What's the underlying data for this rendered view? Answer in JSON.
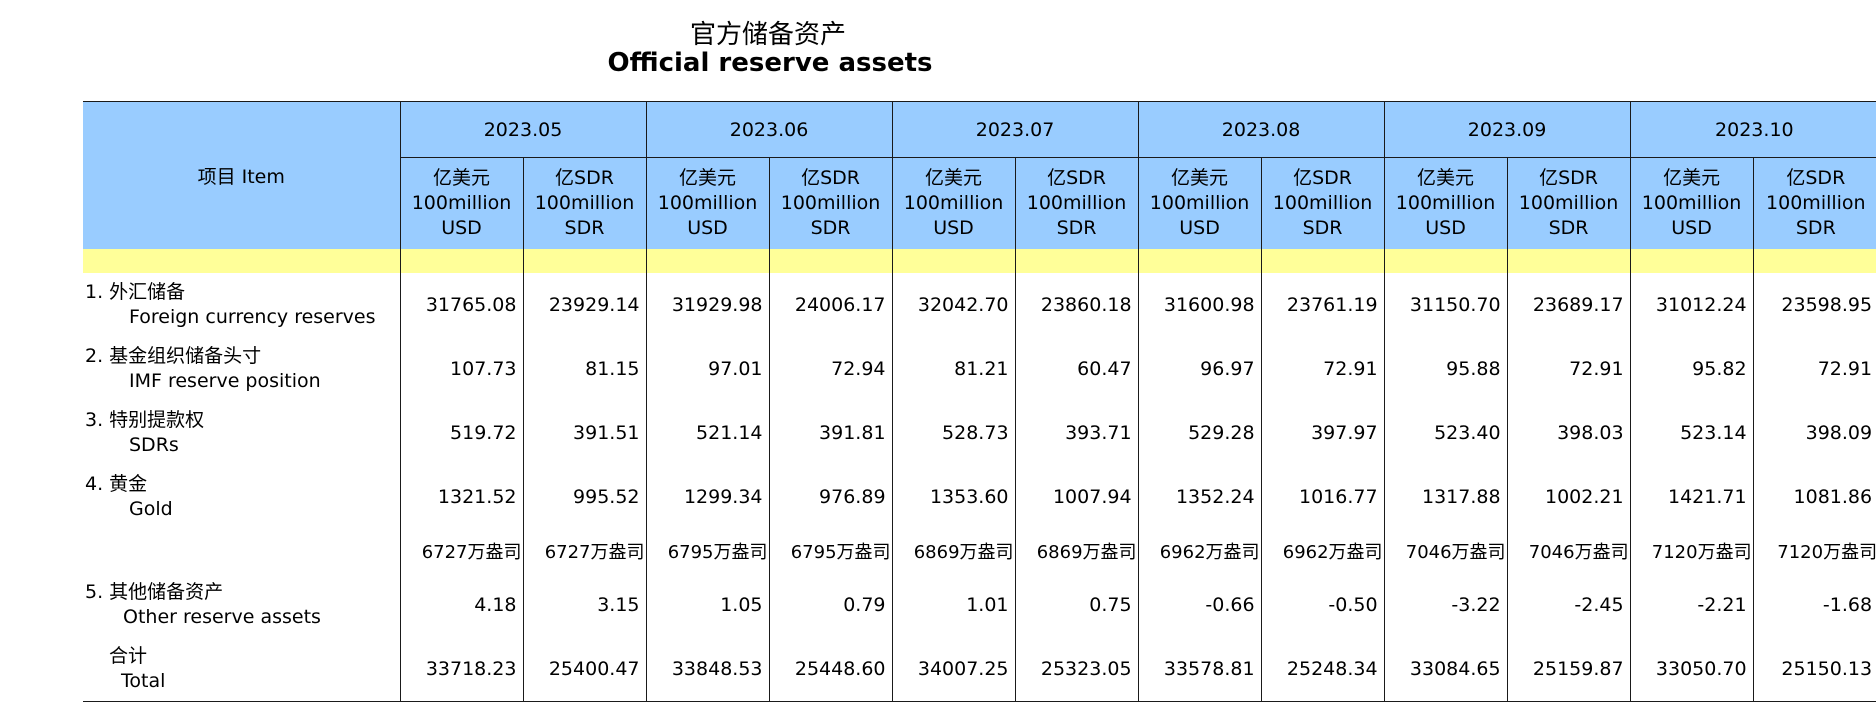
{
  "title": {
    "zh": "官方储备资产",
    "en": "Official reserve assets"
  },
  "header": {
    "item": "项目 Item",
    "months": [
      "2023.05",
      "2023.06",
      "2023.07",
      "2023.08",
      "2023.09",
      "2023.10"
    ],
    "units": {
      "usd": [
        "亿美元",
        "100million",
        "USD"
      ],
      "sdr": [
        "亿SDR",
        "100million",
        "SDR"
      ]
    }
  },
  "rows": [
    {
      "zh": "1. 外汇储备",
      "en": "Foreign currency reserves",
      "values": [
        "31765.08",
        "23929.14",
        "31929.98",
        "24006.17",
        "32042.70",
        "23860.18",
        "31600.98",
        "23761.19",
        "31150.70",
        "23689.17",
        "31012.24",
        "23598.95"
      ]
    },
    {
      "zh": "2. 基金组织储备头寸",
      "en": "IMF reserve position",
      "values": [
        "107.73",
        "81.15",
        "97.01",
        "72.94",
        "81.21",
        "60.47",
        "96.97",
        "72.91",
        "95.88",
        "72.91",
        "95.82",
        "72.91"
      ]
    },
    {
      "zh": "3. 特别提款权",
      "en": "SDRs",
      "values": [
        "519.72",
        "391.51",
        "521.14",
        "391.81",
        "528.73",
        "393.71",
        "529.28",
        "397.97",
        "523.40",
        "398.03",
        "523.14",
        "398.09"
      ]
    },
    {
      "zh": "4. 黄金",
      "en": "Gold",
      "values": [
        "1321.52",
        "995.52",
        "1299.34",
        "976.89",
        "1353.60",
        "1007.94",
        "1352.24",
        "1016.77",
        "1317.88",
        "1002.21",
        "1421.71",
        "1081.86"
      ]
    },
    {
      "zh": "",
      "en": "",
      "values": [
        "6727万盎司",
        "6727万盎司",
        "6795万盎司",
        "6795万盎司",
        "6869万盎司",
        "6869万盎司",
        "6962万盎司",
        "6962万盎司",
        "7046万盎司",
        "7046万盎司",
        "7120万盎司",
        "7120万盎司"
      ]
    },
    {
      "zh": "5. 其他储备资产",
      "en": "Other reserve assets",
      "values": [
        "4.18",
        "3.15",
        "1.05",
        "0.79",
        "1.01",
        "0.75",
        "-0.66",
        "-0.50",
        "-3.22",
        "-2.45",
        "-2.21",
        "-1.68"
      ]
    },
    {
      "zh": "合计",
      "en": "Total",
      "values": [
        "33718.23",
        "25400.47",
        "33848.53",
        "25448.60",
        "34007.25",
        "25323.05",
        "33578.81",
        "25248.34",
        "33084.65",
        "25159.87",
        "33050.70",
        "25150.13"
      ]
    }
  ]
}
